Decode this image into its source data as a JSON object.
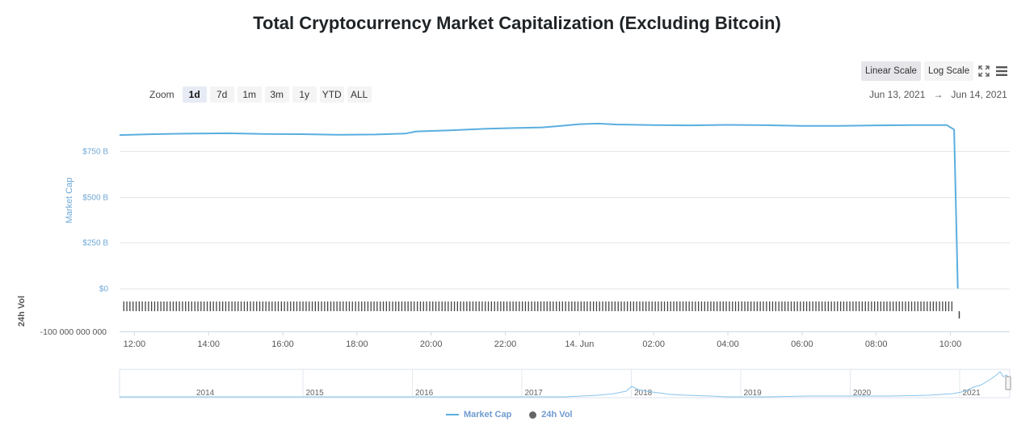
{
  "title": "Total Cryptocurrency Market Capitalization (Excluding Bitcoin)",
  "zoom": {
    "label": "Zoom",
    "buttons": [
      "1d",
      "7d",
      "1m",
      "3m",
      "1y",
      "YTD",
      "ALL"
    ],
    "active": "1d"
  },
  "scale": {
    "linear": "Linear Scale",
    "log": "Log Scale",
    "active": "linear"
  },
  "date_range": {
    "from": "Jun 13, 2021",
    "arrow": "→",
    "to": "Jun 14, 2021"
  },
  "icons": {
    "fullscreen": "fullscreen-icon",
    "menu": "menu-icon"
  },
  "colors": {
    "line": "#5aaee0",
    "volume": "#444444",
    "axis_text": "#6fa8d6",
    "grid": "#e6e6e6"
  },
  "legend": {
    "market_cap": "Market Cap",
    "vol": "24h Vol"
  },
  "chart_data": {
    "type": "line",
    "title": "Total Cryptocurrency Market Capitalization (Excluding Bitcoin)",
    "y_axis_label": "Market Cap",
    "y_ticks": [
      "$0",
      "$250 B",
      "$500 B",
      "$750 B"
    ],
    "y_tick_values": [
      0,
      250,
      500,
      750
    ],
    "ylim": [
      0,
      960
    ],
    "vol_axis_label": "24h Vol",
    "vol_tick": "-100 000 000 000",
    "x_ticks": [
      "12:00",
      "14:00",
      "16:00",
      "18:00",
      "20:00",
      "22:00",
      "14. Jun",
      "02:00",
      "04:00",
      "06:00",
      "08:00",
      "10:00"
    ],
    "x_tick_hours": [
      12,
      14,
      16,
      18,
      20,
      22,
      24,
      26,
      28,
      30,
      32,
      34
    ],
    "x_range_hours": [
      11.6,
      35.6
    ],
    "series": [
      {
        "name": "Market Cap",
        "x_hours": [
          11.6,
          12.5,
          13.5,
          14.5,
          15.5,
          16.5,
          17.5,
          18.5,
          19.3,
          19.6,
          20.5,
          21.5,
          22.5,
          23.0,
          23.5,
          24.0,
          24.5,
          25.0,
          26.0,
          27.0,
          28.0,
          29.0,
          30.0,
          31.0,
          32.0,
          33.0,
          33.9,
          34.1,
          34.2
        ],
        "values": [
          840,
          845,
          848,
          850,
          846,
          845,
          842,
          843,
          848,
          860,
          866,
          875,
          880,
          882,
          890,
          900,
          903,
          898,
          895,
          893,
          896,
          894,
          890,
          890,
          893,
          895,
          895,
          870,
          0
        ]
      }
    ],
    "navigator": {
      "years": [
        "2014",
        "2015",
        "2016",
        "2017",
        "2018",
        "2019",
        "2020",
        "2021"
      ]
    }
  }
}
